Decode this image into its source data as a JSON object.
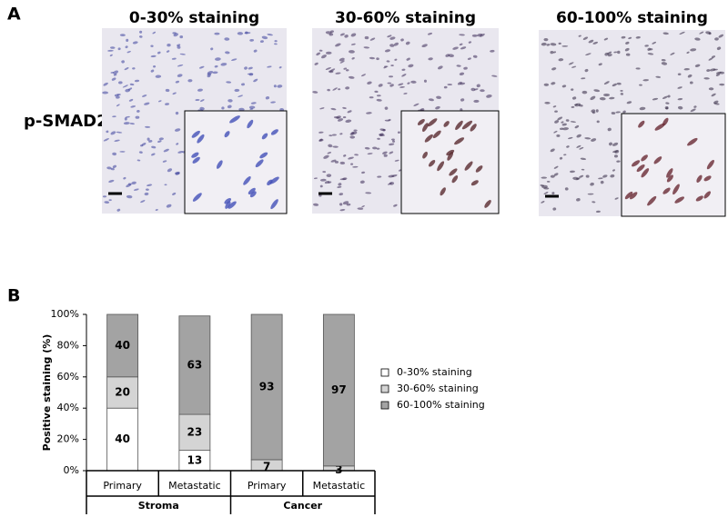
{
  "panel_a": {
    "label": "A",
    "marker": "p-SMAD2",
    "images": [
      {
        "title": "0-30% staining"
      },
      {
        "title": "30-60% staining"
      },
      {
        "title": "60-100% staining"
      }
    ]
  },
  "panel_b_label": "B",
  "chart_data": {
    "type": "stacked_bar",
    "ylabel": "Positive staining (%)",
    "categories": [
      "Primary",
      "Metastatic",
      "Primary",
      "Metastatic"
    ],
    "groups": [
      "Stroma",
      "Cancer"
    ],
    "series": [
      {
        "name": "0-30% staining",
        "color": "#ffffff",
        "values": [
          40,
          13,
          0,
          0
        ]
      },
      {
        "name": "30-60% staining",
        "color": "#d4d4d4",
        "values": [
          20,
          23,
          7,
          3
        ]
      },
      {
        "name": "60-100% staining",
        "color": "#a3a3a3",
        "values": [
          40,
          63,
          93,
          97
        ]
      }
    ],
    "ylim": [
      0,
      100
    ],
    "yticks": [
      {
        "value": 0,
        "label": "0%"
      },
      {
        "value": 20,
        "label": "20%"
      },
      {
        "value": 40,
        "label": "40%"
      },
      {
        "value": 60,
        "label": "60%"
      },
      {
        "value": 80,
        "label": "80%"
      },
      {
        "value": 100,
        "label": "100%"
      }
    ],
    "legend": "right"
  }
}
